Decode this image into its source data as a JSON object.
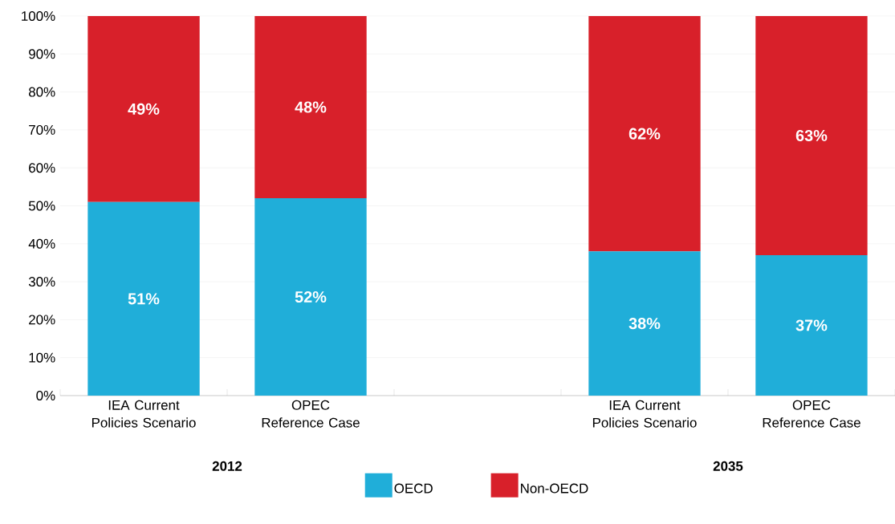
{
  "chart_data": {
    "type": "bar",
    "stacked": true,
    "categories": [
      "IEA Current Policies Scenario",
      "OPEC Reference Case",
      null,
      "IEA Current Policies Scenario",
      "OPEC Reference Case"
    ],
    "series": [
      {
        "name": "OECD",
        "color": "#20aed9",
        "values": [
          51,
          52,
          null,
          38,
          37
        ],
        "value_labels": [
          "51%",
          "52%",
          null,
          "38%",
          "37%"
        ]
      },
      {
        "name": "Non-OECD",
        "color": "#d8202a",
        "values": [
          49,
          48,
          null,
          62,
          63
        ],
        "value_labels": [
          "49%",
          "48%",
          null,
          "62%",
          "63%"
        ]
      }
    ],
    "ylim": [
      0,
      100
    ],
    "yticks": [
      {
        "value": 0,
        "label": "0%"
      },
      {
        "value": 10,
        "label": "10%"
      },
      {
        "value": 20,
        "label": "20%"
      },
      {
        "value": 30,
        "label": "30%"
      },
      {
        "value": 40,
        "label": "40%"
      },
      {
        "value": 50,
        "label": "50%"
      },
      {
        "value": 60,
        "label": "60%"
      },
      {
        "value": 70,
        "label": "70%"
      },
      {
        "value": 80,
        "label": "80%"
      },
      {
        "value": 90,
        "label": "90%"
      },
      {
        "value": 100,
        "label": "100%"
      }
    ],
    "annotations": [
      "2012",
      "2035"
    ],
    "grid": "y",
    "legend": "bottom"
  }
}
